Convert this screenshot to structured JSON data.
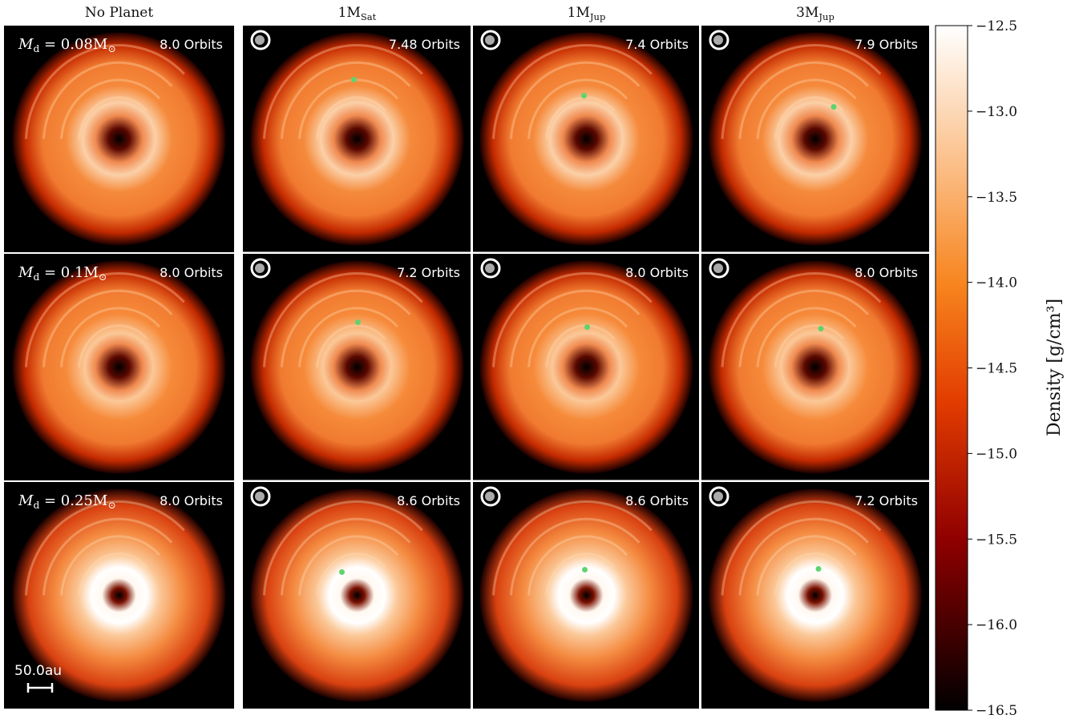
{
  "figure": {
    "columns": [
      {
        "parts": [
          "No Planet"
        ]
      },
      {
        "parts": [
          "1M",
          "Sat"
        ]
      },
      {
        "parts": [
          "1M",
          "Jup"
        ]
      },
      {
        "parts": [
          "3M",
          "Jup"
        ]
      }
    ],
    "rows": [
      {
        "parts": [
          "M",
          "d",
          " = 0.08M",
          "⊙"
        ],
        "orbits": [
          "8.0 Orbits",
          "7.48 Orbits",
          "7.4 Orbits",
          "7.9 Orbits"
        ]
      },
      {
        "parts": [
          "M",
          "d",
          " = 0.1M",
          "⊙"
        ],
        "orbits": [
          "8.0 Orbits",
          "7.2 Orbits",
          "8.0 Orbits",
          "8.0 Orbits"
        ]
      },
      {
        "parts": [
          "M",
          "d",
          " = 0.25M",
          "⊙"
        ],
        "orbits": [
          "8.0 Orbits",
          "8.6 Orbits",
          "8.6 Orbits",
          "7.2 Orbits"
        ]
      }
    ],
    "scale_bar": "50.0au",
    "colorbar": {
      "label": "Density [g/cm³]",
      "lim": [
        -16.5,
        -12.5
      ],
      "ticks": [
        {
          "value": -12.5,
          "label": "−12.5"
        },
        {
          "value": -13.0,
          "label": "−13.0"
        },
        {
          "value": -13.5,
          "label": "−13.5"
        },
        {
          "value": -14.0,
          "label": "−14.0"
        },
        {
          "value": -14.5,
          "label": "−14.5"
        },
        {
          "value": -15.0,
          "label": "−15.0"
        },
        {
          "value": -15.5,
          "label": "−15.5"
        },
        {
          "value": -16.0,
          "label": "−16.0"
        },
        {
          "value": -16.5,
          "label": "−16.5"
        }
      ]
    }
  }
}
